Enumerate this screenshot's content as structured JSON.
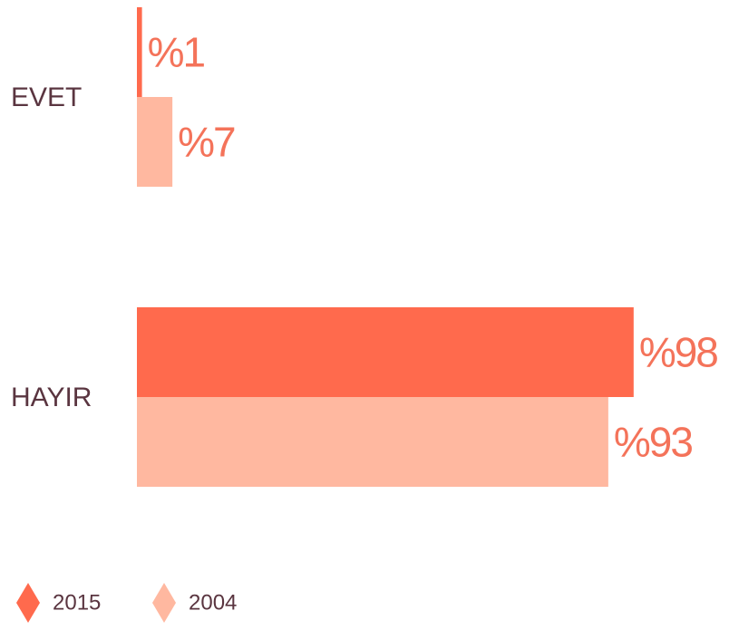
{
  "chart_data": {
    "type": "bar",
    "orientation": "horizontal",
    "categories": [
      "EVET",
      "HAYIR"
    ],
    "series": [
      {
        "name": "2015",
        "color": "#ff6a4d",
        "values": [
          1,
          98
        ],
        "value_labels": [
          "%1",
          "%98"
        ]
      },
      {
        "name": "2004",
        "color": "#ffb8a0",
        "values": [
          7,
          93
        ],
        "value_labels": [
          "%7",
          "%93"
        ]
      }
    ]
  }
}
